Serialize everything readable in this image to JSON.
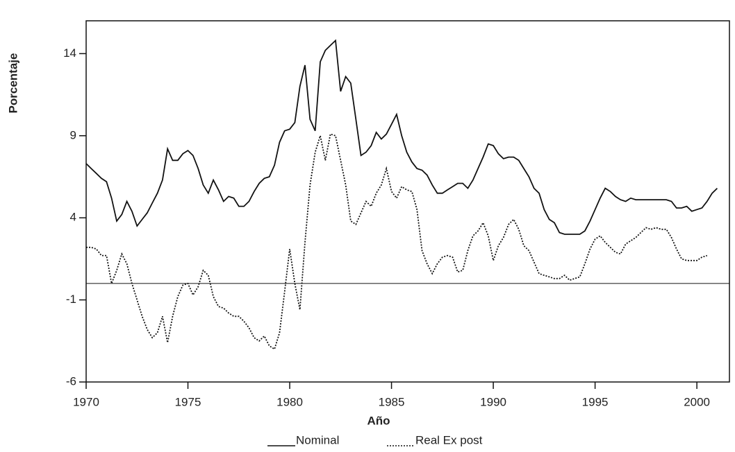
{
  "chart_data": {
    "type": "line",
    "x_label": "Año",
    "y_label": "Porcentaje",
    "x": [
      1970,
      1970.25,
      1970.5,
      1970.75,
      1971,
      1971.25,
      1971.5,
      1971.75,
      1972,
      1972.25,
      1972.5,
      1972.75,
      1973,
      1973.25,
      1973.5,
      1973.75,
      1974,
      1974.25,
      1974.5,
      1974.75,
      1975,
      1975.25,
      1975.5,
      1975.75,
      1976,
      1976.25,
      1976.5,
      1976.75,
      1977,
      1977.25,
      1977.5,
      1977.75,
      1978,
      1978.25,
      1978.5,
      1978.75,
      1979,
      1979.25,
      1979.5,
      1979.75,
      1980,
      1980.25,
      1980.5,
      1980.75,
      1981,
      1981.25,
      1981.5,
      1981.75,
      1982,
      1982.25,
      1982.5,
      1982.75,
      1983,
      1983.25,
      1983.5,
      1983.75,
      1984,
      1984.25,
      1984.5,
      1984.75,
      1985,
      1985.25,
      1985.5,
      1985.75,
      1986,
      1986.25,
      1986.5,
      1986.75,
      1987,
      1987.25,
      1987.5,
      1987.75,
      1988,
      1988.25,
      1988.5,
      1988.75,
      1989,
      1989.25,
      1989.5,
      1989.75,
      1990,
      1990.25,
      1990.5,
      1990.75,
      1991,
      1991.25,
      1991.5,
      1991.75,
      1992,
      1992.25,
      1992.5,
      1992.75,
      1993,
      1993.25,
      1993.5,
      1993.75,
      1994,
      1994.25,
      1994.5,
      1994.75,
      1995,
      1995.25,
      1995.5,
      1995.75,
      1996,
      1996.25,
      1996.5,
      1996.75,
      1997,
      1997.25,
      1997.5,
      1997.75,
      1998,
      1998.25,
      1998.5,
      1998.75,
      1999,
      1999.25,
      1999.5,
      1999.75,
      2000,
      2000.25,
      2000.5,
      2000.75,
      2001
    ],
    "series": [
      {
        "name": "Nominal",
        "color": "#111111",
        "dash": "solid",
        "values": [
          7.3,
          7.0,
          6.7,
          6.4,
          6.2,
          5.2,
          3.8,
          4.2,
          5.0,
          4.4,
          3.5,
          3.9,
          4.3,
          4.9,
          5.5,
          6.3,
          8.2,
          7.5,
          7.5,
          7.9,
          8.1,
          7.8,
          7.0,
          6.0,
          5.5,
          6.3,
          5.7,
          5.0,
          5.3,
          5.2,
          4.7,
          4.7,
          5.0,
          5.6,
          6.1,
          6.4,
          6.5,
          7.2,
          8.6,
          9.3,
          9.4,
          9.8,
          12.0,
          13.3,
          10.0,
          9.3,
          13.5,
          14.2,
          14.5,
          14.8,
          11.7,
          12.6,
          12.2,
          10.0,
          7.8,
          8.0,
          8.4,
          9.2,
          8.8,
          9.1,
          9.7,
          10.3,
          9.0,
          8.0,
          7.4,
          7.0,
          6.9,
          6.6,
          6.0,
          5.5,
          5.5,
          5.7,
          5.9,
          6.1,
          6.1,
          5.8,
          6.3,
          7.0,
          7.7,
          8.5,
          8.4,
          7.9,
          7.6,
          7.7,
          7.7,
          7.5,
          7.0,
          6.5,
          5.8,
          5.5,
          4.5,
          3.9,
          3.7,
          3.1,
          3.0,
          3.0,
          3.0,
          3.0,
          3.2,
          3.8,
          4.5,
          5.2,
          5.8,
          5.6,
          5.3,
          5.1,
          5.0,
          5.2,
          5.1,
          5.1,
          5.1,
          5.1,
          5.1,
          5.1,
          5.1,
          5.0,
          4.6,
          4.6,
          4.7,
          4.4,
          4.5,
          4.6,
          5.0,
          5.5,
          5.8
        ]
      },
      {
        "name": "Real Ex post",
        "color": "#111111",
        "dash": "dotted",
        "values": [
          2.2,
          2.2,
          2.1,
          1.7,
          1.7,
          0.0,
          0.8,
          1.8,
          1.2,
          0.0,
          -1.0,
          -2.0,
          -2.8,
          -3.3,
          -3.0,
          -2.0,
          -3.6,
          -2.0,
          -0.8,
          -0.1,
          0.0,
          -0.7,
          -0.2,
          0.8,
          0.5,
          -0.8,
          -1.4,
          -1.5,
          -1.8,
          -2.0,
          -2.0,
          -2.3,
          -2.7,
          -3.3,
          -3.5,
          -3.2,
          -3.8,
          -4.0,
          -3.0,
          -0.5,
          2.1,
          0.0,
          -1.6,
          2.5,
          6.0,
          8.0,
          9.0,
          7.5,
          9.1,
          9.0,
          7.5,
          6.0,
          3.8,
          3.6,
          4.3,
          5.0,
          4.7,
          5.5,
          6.0,
          7.0,
          5.6,
          5.2,
          5.9,
          5.7,
          5.6,
          4.5,
          2.0,
          1.2,
          0.6,
          1.2,
          1.6,
          1.7,
          1.6,
          0.7,
          0.8,
          2.0,
          2.9,
          3.2,
          3.7,
          2.9,
          1.4,
          2.3,
          2.8,
          3.6,
          3.9,
          3.3,
          2.3,
          2.0,
          1.3,
          0.6,
          0.5,
          0.4,
          0.3,
          0.3,
          0.5,
          0.2,
          0.3,
          0.4,
          1.2,
          2.1,
          2.7,
          2.9,
          2.5,
          2.2,
          1.9,
          1.8,
          2.4,
          2.6,
          2.8,
          3.1,
          3.4,
          3.3,
          3.4,
          3.3,
          3.3,
          2.8,
          2.1,
          1.5,
          1.4,
          1.4,
          1.4,
          1.6,
          1.7,
          null,
          null
        ]
      }
    ],
    "reference_line": 0,
    "xlim": [
      1970,
      2001.6
    ],
    "xticks": [
      1970,
      1975,
      1980,
      1985,
      1990,
      1995,
      2000
    ],
    "ylim": [
      -6,
      16
    ],
    "yticks": [
      -6,
      -1,
      4,
      9,
      14
    ],
    "legend": "bottom"
  }
}
